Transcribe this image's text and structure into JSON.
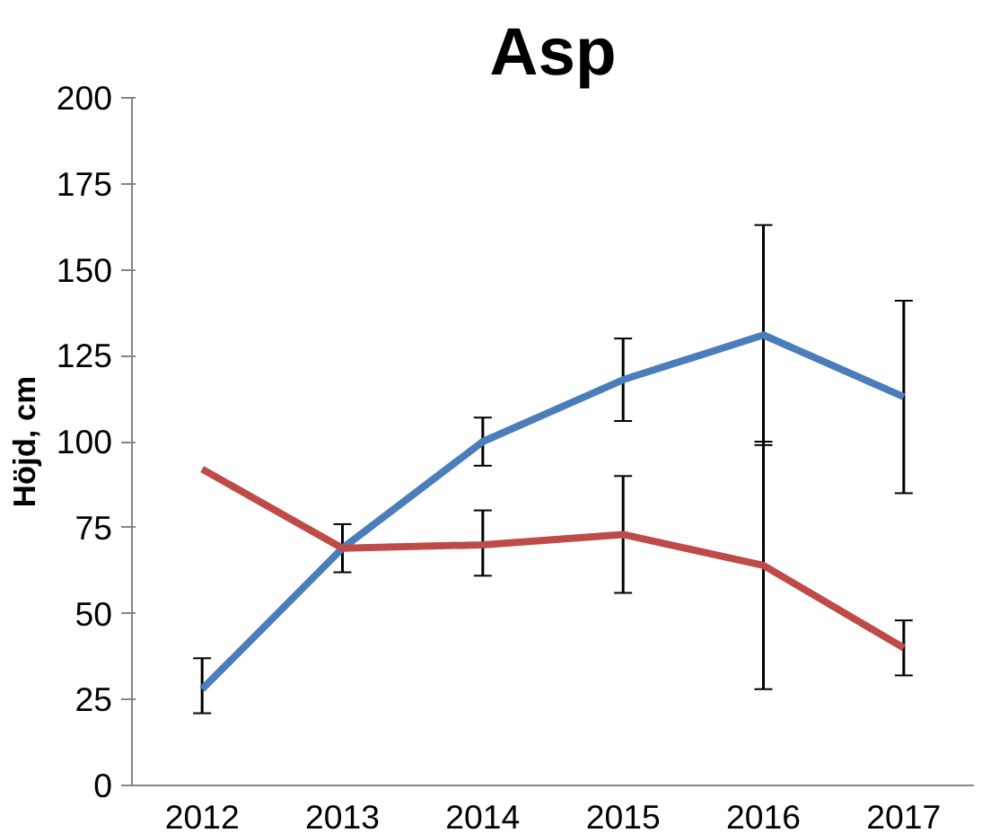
{
  "chart_data": {
    "type": "line",
    "title": "Asp",
    "ylabel": "Höjd, cm",
    "categories": [
      "2012",
      "2013",
      "2014",
      "2015",
      "2016",
      "2017"
    ],
    "series": [
      {
        "color": "#4a7ebb",
        "values": [
          28,
          69,
          100,
          118,
          131,
          113
        ],
        "errors": [
          [
            21,
            37
          ],
          null,
          [
            93,
            107
          ],
          [
            106,
            130
          ],
          [
            99,
            163
          ],
          [
            85,
            141
          ]
        ]
      },
      {
        "color": "#be4b48",
        "values": [
          92,
          69,
          70,
          73,
          64,
          40
        ],
        "errors": [
          null,
          [
            62,
            76
          ],
          [
            61,
            80
          ],
          [
            56,
            90
          ],
          [
            28,
            100
          ],
          [
            32,
            48
          ]
        ]
      }
    ],
    "ylim": [
      0,
      200
    ],
    "yticks": [
      0,
      25,
      50,
      75,
      100,
      125,
      150,
      175,
      200
    ],
    "grid": false,
    "marker": "none",
    "line_style": "solid"
  }
}
